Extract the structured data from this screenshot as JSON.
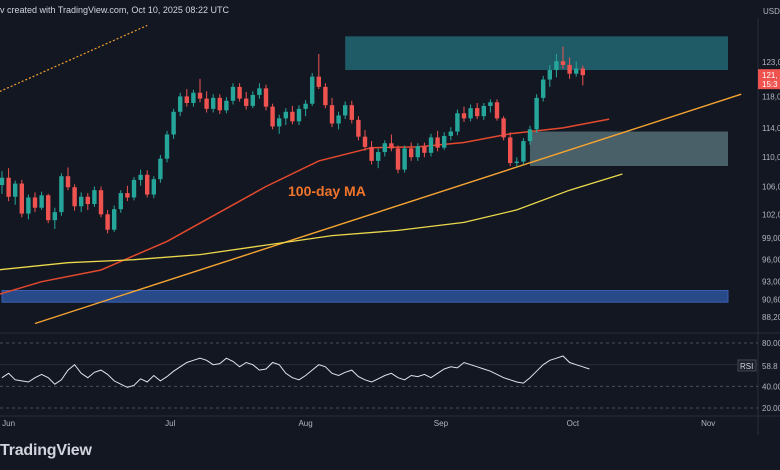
{
  "header": {
    "text": "v created with TradingView.com, Oct 10, 2025 08:22 UTC"
  },
  "branding": {
    "text": "TradingView"
  },
  "chart_data": [
    {
      "type": "candlestick",
      "pair_label": "USD",
      "x_ticks": [
        "Jun",
        "Jul",
        "Aug",
        "Sep",
        "Oct",
        "Nov"
      ],
      "y_ticks": [
        "123,0",
        "118,0",
        "114,0",
        "110,0",
        "106,0",
        "102,0",
        "99,00",
        "96,00",
        "93,00",
        "90,60",
        "88,20"
      ],
      "last_price_label": "121,",
      "countdown_label": "15:3",
      "annotation": "100-day MA",
      "candles": [
        [
          106.2,
          108.1,
          105.0,
          107.2
        ],
        [
          107.2,
          108.5,
          104.0,
          104.6
        ],
        [
          104.6,
          106.8,
          103.5,
          106.4
        ],
        [
          106.4,
          106.9,
          101.8,
          102.3
        ],
        [
          102.3,
          104.9,
          101.5,
          104.5
        ],
        [
          104.5,
          105.2,
          102.5,
          103.1
        ],
        [
          103.1,
          105.3,
          102.8,
          104.8
        ],
        [
          104.8,
          105.0,
          101.0,
          101.4
        ],
        [
          101.4,
          103.1,
          100.2,
          102.5
        ],
        [
          102.5,
          107.8,
          102.0,
          107.4
        ],
        [
          107.4,
          108.6,
          105.5,
          105.9
        ],
        [
          105.9,
          106.3,
          102.7,
          103.3
        ],
        [
          103.3,
          105.2,
          102.5,
          104.6
        ],
        [
          104.6,
          105.1,
          102.8,
          103.6
        ],
        [
          103.6,
          106.0,
          103.2,
          105.5
        ],
        [
          105.5,
          106.0,
          101.8,
          102.2
        ],
        [
          102.2,
          102.8,
          99.6,
          100.1
        ],
        [
          100.1,
          103.4,
          99.8,
          102.9
        ],
        [
          102.9,
          105.5,
          102.4,
          105.1
        ],
        [
          105.1,
          106.1,
          104.0,
          104.5
        ],
        [
          104.5,
          107.3,
          104.1,
          106.9
        ],
        [
          106.9,
          108.3,
          106.1,
          107.6
        ],
        [
          107.6,
          108.2,
          104.5,
          104.9
        ],
        [
          104.9,
          107.4,
          104.4,
          107.0
        ],
        [
          107.0,
          110.3,
          106.5,
          109.8
        ],
        [
          109.8,
          113.6,
          109.3,
          113.1
        ],
        [
          113.1,
          116.6,
          112.5,
          116.2
        ],
        [
          116.2,
          118.8,
          115.6,
          118.3
        ],
        [
          118.3,
          119.3,
          116.9,
          117.4
        ],
        [
          117.4,
          119.2,
          116.9,
          118.8
        ],
        [
          118.8,
          120.7,
          117.5,
          118.0
        ],
        [
          118.0,
          119.0,
          116.1,
          116.6
        ],
        [
          116.6,
          118.6,
          116.1,
          118.1
        ],
        [
          118.1,
          118.6,
          115.9,
          116.4
        ],
        [
          116.4,
          118.2,
          116.0,
          117.7
        ],
        [
          117.7,
          120.1,
          117.2,
          119.6
        ],
        [
          119.6,
          120.1,
          117.6,
          118.0
        ],
        [
          118.0,
          118.9,
          116.5,
          117.0
        ],
        [
          117.0,
          119.0,
          116.7,
          118.5
        ],
        [
          118.5,
          120.1,
          118.0,
          119.4
        ],
        [
          119.4,
          119.9,
          116.4,
          116.9
        ],
        [
          116.9,
          117.3,
          113.8,
          114.2
        ],
        [
          114.2,
          115.8,
          113.2,
          115.3
        ],
        [
          115.3,
          116.7,
          114.4,
          116.2
        ],
        [
          116.2,
          117.0,
          114.5,
          114.9
        ],
        [
          114.9,
          117.1,
          114.4,
          116.6
        ],
        [
          116.6,
          117.8,
          115.6,
          117.3
        ],
        [
          117.3,
          121.5,
          117.0,
          121.0
        ],
        [
          121.0,
          124.1,
          119.3,
          119.6
        ],
        [
          119.6,
          120.1,
          116.7,
          117.1
        ],
        [
          117.1,
          118.1,
          114.1,
          114.6
        ],
        [
          114.6,
          116.2,
          113.8,
          115.7
        ],
        [
          115.7,
          117.6,
          115.2,
          117.1
        ],
        [
          117.1,
          117.7,
          114.6,
          115.1
        ],
        [
          115.1,
          115.6,
          112.3,
          112.8
        ],
        [
          112.8,
          113.7,
          110.9,
          111.4
        ],
        [
          111.4,
          112.2,
          109.0,
          109.5
        ],
        [
          109.5,
          111.2,
          108.5,
          110.7
        ],
        [
          110.7,
          112.3,
          110.1,
          111.9
        ],
        [
          111.9,
          113.1,
          110.8,
          111.2
        ],
        [
          111.2,
          111.6,
          107.8,
          108.3
        ],
        [
          108.3,
          111.6,
          107.9,
          111.2
        ],
        [
          111.2,
          112.0,
          109.5,
          110.0
        ],
        [
          110.0,
          111.9,
          109.5,
          111.5
        ],
        [
          111.5,
          112.0,
          110.0,
          110.6
        ],
        [
          110.6,
          113.2,
          110.1,
          112.7
        ],
        [
          112.7,
          113.6,
          110.8,
          111.3
        ],
        [
          111.3,
          113.4,
          111.0,
          112.9
        ],
        [
          112.9,
          114.1,
          112.3,
          113.5
        ],
        [
          113.5,
          116.5,
          113.0,
          116.0
        ],
        [
          116.0,
          116.9,
          114.8,
          115.3
        ],
        [
          115.3,
          117.2,
          114.9,
          116.7
        ],
        [
          116.7,
          117.4,
          115.2,
          115.6
        ],
        [
          115.6,
          117.4,
          115.1,
          117.0
        ],
        [
          117.0,
          117.9,
          116.1,
          117.5
        ],
        [
          117.5,
          117.9,
          115.0,
          115.3
        ],
        [
          115.3,
          115.6,
          112.3,
          112.7
        ],
        [
          112.7,
          113.4,
          108.8,
          109.2
        ],
        [
          109.2,
          110.0,
          108.7,
          109.4
        ],
        [
          109.4,
          112.6,
          109.0,
          112.2
        ],
        [
          112.2,
          114.3,
          111.7,
          113.8
        ],
        [
          113.8,
          118.6,
          113.3,
          118.1
        ],
        [
          118.1,
          121.1,
          117.6,
          120.6
        ],
        [
          120.6,
          122.6,
          119.6,
          121.9
        ],
        [
          121.9,
          124.1,
          120.9,
          123.1
        ],
        [
          123.1,
          125.1,
          122.1,
          122.6
        ],
        [
          122.6,
          123.6,
          120.7,
          121.4
        ],
        [
          121.4,
          123.1,
          121.0,
          122.1
        ],
        [
          122.1,
          122.5,
          119.8,
          121.2
        ]
      ],
      "boxes": [
        {
          "name": "resistance-zone",
          "x0": 52,
          "x1": 110,
          "y0": 121.9,
          "y1": 126.5,
          "color": "#1f5f6b"
        },
        {
          "name": "demand-zone",
          "x0": 80,
          "x1": 110,
          "y0": 108.8,
          "y1": 113.5,
          "color": "#5c7a80"
        },
        {
          "name": "support-zone",
          "x0": 0,
          "x1": 110,
          "y0": 90.2,
          "y1": 91.8,
          "color": "#2a4d8f"
        }
      ],
      "lines": [
        {
          "name": "ascending-trendline",
          "color": "#f5a431",
          "width": 1.4,
          "pts": [
            [
              5,
              87.3
            ],
            [
              112,
              118.6
            ]
          ]
        },
        {
          "name": "upper-channel-line",
          "color": "#f0a030",
          "width": 1.2,
          "dash": "2,2",
          "pts": [
            [
              -2,
              118.3
            ],
            [
              22,
              128.0
            ]
          ]
        },
        {
          "name": "moving-average-100",
          "color": "#e4492e",
          "width": 1.5,
          "pts": [
            [
              -3,
              90.6
            ],
            [
              6,
              93.0
            ],
            [
              15,
              94.6
            ],
            [
              25,
              98.5
            ],
            [
              32,
              102.0
            ],
            [
              40,
              106.0
            ],
            [
              48,
              109.5
            ],
            [
              56,
              111.3
            ],
            [
              63,
              111.4
            ],
            [
              70,
              112.0
            ],
            [
              77,
              113.2
            ],
            [
              85,
              114.0
            ],
            [
              92,
              115.2
            ]
          ]
        },
        {
          "name": "moving-average-200",
          "color": "#ecd94c",
          "width": 1.3,
          "pts": [
            [
              -3,
              94.4
            ],
            [
              10,
              95.6
            ],
            [
              20,
              96.0
            ],
            [
              30,
              96.7
            ],
            [
              40,
              98.0
            ],
            [
              50,
              99.3
            ],
            [
              60,
              100.0
            ],
            [
              70,
              101.1
            ],
            [
              78,
              102.8
            ],
            [
              86,
              105.5
            ],
            [
              94,
              107.7
            ]
          ]
        }
      ],
      "rsi": {
        "label": "RSI",
        "value_label": "58.8",
        "y_ticks": [
          "80.00",
          "40.00",
          "20.00"
        ],
        "values": [
          48,
          52,
          46,
          45,
          44,
          48,
          51,
          48,
          42,
          46,
          55,
          60,
          52,
          48,
          53,
          55,
          51,
          45,
          42,
          39,
          41,
          47,
          44,
          50,
          45,
          49,
          54,
          58,
          62,
          64,
          66,
          64,
          60,
          61,
          66,
          63,
          58,
          62,
          60,
          55,
          56,
          62,
          60,
          52,
          48,
          46,
          50,
          55,
          60,
          58,
          52,
          50,
          53,
          55,
          49,
          46,
          44,
          47,
          50,
          52,
          48,
          46,
          50,
          49,
          51,
          48,
          52,
          56,
          58,
          57,
          62,
          60,
          58,
          56,
          54,
          51,
          48,
          46,
          44,
          43,
          48,
          54,
          60,
          64,
          66,
          68,
          62,
          60,
          58,
          56
        ]
      }
    }
  ]
}
